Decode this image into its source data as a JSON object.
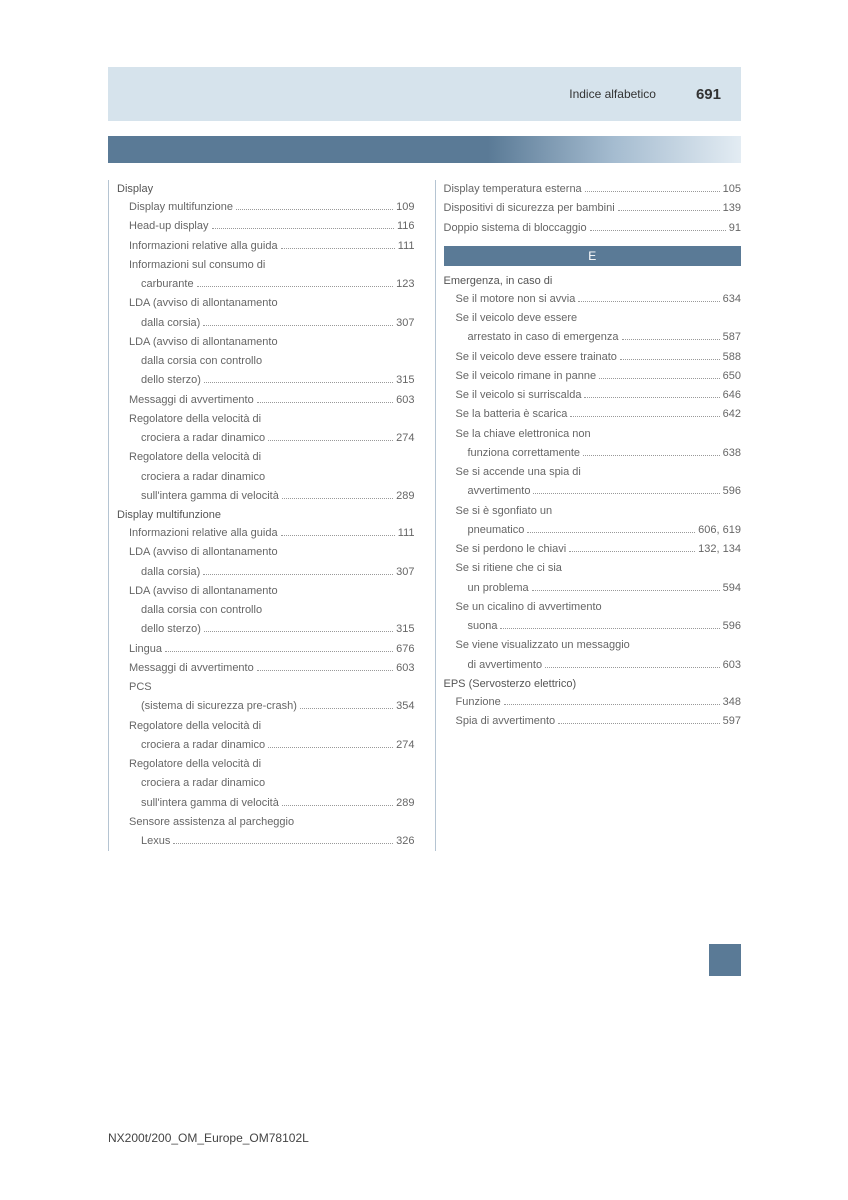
{
  "header": {
    "title": "Indice alfabetico",
    "pageNumber": "691"
  },
  "colors": {
    "headerBand": "#d6e3ec",
    "gradientStart": "#5a7a96",
    "gradientEnd": "#e3ecf3",
    "tab": "#5a7a96",
    "borderLine": "#b5c4d2",
    "text": "#666666"
  },
  "leftColumn": {
    "sections": [
      {
        "heading": "Display",
        "entries": [
          {
            "label": "Display multifunzione",
            "page": "109",
            "indent": 1
          },
          {
            "label": "Head-up display",
            "page": "116",
            "indent": 1
          },
          {
            "label": "Informazioni relative alla guida",
            "page": "111",
            "indent": 1
          },
          {
            "label": "Informazioni sul consumo di",
            "cont": "carburante",
            "page": "123",
            "indent": 1,
            "contIndent": 2
          },
          {
            "label": "LDA (avviso di allontanamento",
            "cont": "dalla corsia)",
            "page": "307",
            "indent": 1,
            "contIndent": 2
          },
          {
            "label": "LDA (avviso di allontanamento",
            "cont": "dalla corsia con controllo",
            "cont2": "dello sterzo)",
            "page": "315",
            "indent": 1,
            "contIndent": 2
          },
          {
            "label": "Messaggi di avvertimento",
            "page": "603",
            "indent": 1
          },
          {
            "label": "Regolatore della velocità di",
            "cont": "crociera a radar dinamico",
            "page": "274",
            "indent": 1,
            "contIndent": 2
          },
          {
            "label": "Regolatore della velocità di",
            "cont": "crociera a radar dinamico",
            "cont2": "sull'intera gamma di velocità",
            "page": "289",
            "indent": 1,
            "contIndent": 2
          }
        ]
      },
      {
        "heading": "Display multifunzione",
        "entries": [
          {
            "label": "Informazioni relative alla guida",
            "page": "111",
            "indent": 1
          },
          {
            "label": "LDA (avviso di allontanamento",
            "cont": "dalla corsia)",
            "page": "307",
            "indent": 1,
            "contIndent": 2
          },
          {
            "label": "LDA (avviso di allontanamento",
            "cont": "dalla corsia con controllo",
            "cont2": "dello sterzo)",
            "page": "315",
            "indent": 1,
            "contIndent": 2
          },
          {
            "label": "Lingua",
            "page": "676",
            "indent": 1
          },
          {
            "label": "Messaggi di avvertimento",
            "page": "603",
            "indent": 1
          },
          {
            "label": "PCS",
            "cont": "(sistema di sicurezza pre-crash)",
            "page": "354",
            "indent": 1,
            "contIndent": 2
          },
          {
            "label": "Regolatore della velocità di",
            "cont": "crociera a radar dinamico",
            "page": "274",
            "indent": 1,
            "contIndent": 2
          },
          {
            "label": "Regolatore della velocità di",
            "cont": "crociera a radar dinamico",
            "cont2": "sull'intera gamma di velocità",
            "page": "289",
            "indent": 1,
            "contIndent": 2
          },
          {
            "label": "Sensore assistenza al parcheggio",
            "cont": "Lexus",
            "page": "326",
            "indent": 1,
            "contIndent": 2
          }
        ]
      }
    ]
  },
  "rightColumn": {
    "topEntries": [
      {
        "label": "Display temperatura esterna",
        "page": "105"
      },
      {
        "label": "Dispositivi di sicurezza per bambini",
        "page": "139"
      },
      {
        "label": "Doppio sistema di bloccaggio",
        "page": "91"
      }
    ],
    "letterHeader": "E",
    "sections": [
      {
        "heading": "Emergenza, in caso di",
        "entries": [
          {
            "label": "Se il motore non si avvia",
            "page": "634",
            "indent": 1
          },
          {
            "label": "Se il veicolo deve essere",
            "cont": "arrestato in caso di emergenza",
            "page": "587",
            "indent": 1,
            "contIndent": 2
          },
          {
            "label": "Se il veicolo deve essere trainato",
            "page": "588",
            "indent": 1
          },
          {
            "label": "Se il veicolo rimane in panne",
            "page": "650",
            "indent": 1
          },
          {
            "label": "Se il veicolo si surriscalda",
            "page": "646",
            "indent": 1
          },
          {
            "label": "Se la batteria è scarica",
            "page": "642",
            "indent": 1
          },
          {
            "label": "Se la chiave elettronica non",
            "cont": "funziona correttamente",
            "page": "638",
            "indent": 1,
            "contIndent": 2
          },
          {
            "label": "Se si accende una spia di",
            "cont": "avvertimento",
            "page": "596",
            "indent": 1,
            "contIndent": 2
          },
          {
            "label": "Se si è sgonfiato un",
            "cont": "pneumatico",
            "page": "606, 619",
            "indent": 1,
            "contIndent": 2
          },
          {
            "label": "Se si perdono le chiavi",
            "page": "132, 134",
            "indent": 1
          },
          {
            "label": "Se si ritiene che ci sia",
            "cont": "un problema",
            "page": "594",
            "indent": 1,
            "contIndent": 2
          },
          {
            "label": "Se un cicalino di avvertimento",
            "cont": "suona",
            "page": "596",
            "indent": 1,
            "contIndent": 2
          },
          {
            "label": "Se viene visualizzato un messaggio",
            "cont": "di avvertimento",
            "page": "603",
            "indent": 1,
            "contIndent": 2
          }
        ]
      },
      {
        "heading": "EPS (Servosterzo elettrico)",
        "entries": [
          {
            "label": "Funzione",
            "page": "348",
            "indent": 1
          },
          {
            "label": "Spia di avvertimento",
            "page": "597",
            "indent": 1
          }
        ]
      }
    ]
  },
  "footer": {
    "code": "NX200t/200_OM_Europe_OM78102L"
  }
}
